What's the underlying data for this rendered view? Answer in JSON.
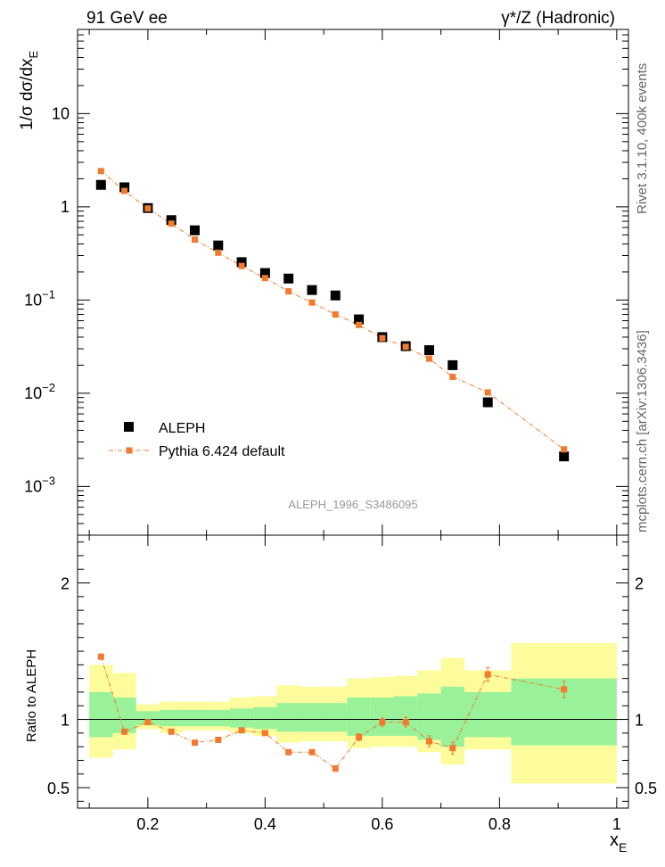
{
  "header": {
    "left": "91 GeV ee",
    "right": "γ*/Z (Hadronic)"
  },
  "side_text": {
    "top": "Rivet 3.1.10,  400k events",
    "bottom": "mcplots.cern.ch [arXiv:1306.3436]"
  },
  "watermark": "ALEPH_1996_S3486095",
  "colors": {
    "data": "#000000",
    "mc": "#f07a2e",
    "band_inner": "#99f299",
    "band_outer": "#fcfc9c"
  },
  "chart_data": [
    {
      "type": "scatter",
      "ylabel": "1/σ dσ/dx",
      "ylabel_sub": "E",
      "yscale": "log",
      "xlim": [
        0.08,
        1.02
      ],
      "ylim": [
        0.0003,
        80
      ],
      "y_ticks": [
        {
          "value": 0.001,
          "mantissa": "10",
          "exp": "−3"
        },
        {
          "value": 0.01,
          "mantissa": "10",
          "exp": "−2"
        },
        {
          "value": 0.1,
          "mantissa": "10",
          "exp": "−1"
        },
        {
          "value": 1,
          "mantissa": "1",
          "exp": ""
        },
        {
          "value": 10,
          "mantissa": "10",
          "exp": ""
        }
      ],
      "legend": {
        "placement": "bottom-left",
        "entries": [
          "ALEPH",
          "Pythia 6.424 default"
        ]
      },
      "series": [
        {
          "name": "ALEPH",
          "x": [
            0.12,
            0.16,
            0.2,
            0.24,
            0.28,
            0.32,
            0.36,
            0.4,
            0.44,
            0.48,
            0.52,
            0.56,
            0.6,
            0.64,
            0.68,
            0.72,
            0.78,
            0.91
          ],
          "y": [
            1.72,
            1.62,
            0.97,
            0.72,
            0.56,
            0.385,
            0.255,
            0.195,
            0.17,
            0.128,
            0.112,
            0.062,
            0.04,
            0.032,
            0.029,
            0.02,
            0.008,
            0.0021
          ]
        },
        {
          "name": "Pythia 6.424 default",
          "x": [
            0.12,
            0.16,
            0.2,
            0.24,
            0.28,
            0.32,
            0.36,
            0.4,
            0.44,
            0.48,
            0.52,
            0.56,
            0.6,
            0.64,
            0.68,
            0.72,
            0.78,
            0.91
          ],
          "y": [
            2.42,
            1.48,
            0.96,
            0.66,
            0.445,
            0.322,
            0.232,
            0.172,
            0.124,
            0.094,
            0.07,
            0.054,
            0.039,
            0.0315,
            0.0235,
            0.015,
            0.0102,
            0.0025
          ]
        }
      ]
    },
    {
      "type": "scatter",
      "ylabel": "Ratio to ALEPH",
      "xlabel": "x",
      "xlabel_sub": "E",
      "xlim": [
        0.08,
        1.02
      ],
      "ylim": [
        0.35,
        2.35
      ],
      "x_ticks": [
        "0.2",
        "0.4",
        "0.6",
        "0.8",
        "1"
      ],
      "y_ticks": [
        "0.5",
        "1",
        "2"
      ],
      "bands": {
        "bins": [
          [
            0.1,
            0.14
          ],
          [
            0.14,
            0.18
          ],
          [
            0.18,
            0.22
          ],
          [
            0.22,
            0.26
          ],
          [
            0.26,
            0.3
          ],
          [
            0.3,
            0.34
          ],
          [
            0.34,
            0.38
          ],
          [
            0.38,
            0.42
          ],
          [
            0.42,
            0.46
          ],
          [
            0.46,
            0.5
          ],
          [
            0.5,
            0.54
          ],
          [
            0.54,
            0.58
          ],
          [
            0.58,
            0.62
          ],
          [
            0.62,
            0.66
          ],
          [
            0.66,
            0.7
          ],
          [
            0.7,
            0.74
          ],
          [
            0.74,
            0.82
          ],
          [
            0.82,
            1.0
          ]
        ],
        "outer_lo": [
          0.72,
          0.78,
          0.93,
          0.9,
          0.92,
          0.92,
          0.9,
          0.88,
          0.83,
          0.84,
          0.84,
          0.79,
          0.8,
          0.8,
          0.76,
          0.67,
          0.78,
          0.53
        ],
        "outer_hi": [
          1.4,
          1.34,
          1.11,
          1.13,
          1.13,
          1.13,
          1.16,
          1.17,
          1.25,
          1.24,
          1.24,
          1.3,
          1.31,
          1.32,
          1.36,
          1.45,
          1.36,
          1.56
        ],
        "inner_lo": [
          0.87,
          0.9,
          0.96,
          0.95,
          0.95,
          0.95,
          0.94,
          0.93,
          0.91,
          0.91,
          0.91,
          0.88,
          0.88,
          0.88,
          0.85,
          0.8,
          0.87,
          0.81
        ],
        "inner_hi": [
          1.2,
          1.16,
          1.06,
          1.07,
          1.07,
          1.07,
          1.08,
          1.09,
          1.12,
          1.12,
          1.12,
          1.16,
          1.16,
          1.17,
          1.19,
          1.24,
          1.2,
          1.3
        ]
      },
      "series": [
        {
          "name": "Pythia 6.424 default",
          "x": [
            0.12,
            0.16,
            0.2,
            0.24,
            0.28,
            0.32,
            0.36,
            0.4,
            0.44,
            0.48,
            0.52,
            0.56,
            0.6,
            0.64,
            0.68,
            0.72,
            0.78,
            0.91
          ],
          "y": [
            1.46,
            0.91,
            0.98,
            0.91,
            0.83,
            0.85,
            0.92,
            0.9,
            0.76,
            0.76,
            0.64,
            0.87,
            0.98,
            0.98,
            0.84,
            0.79,
            1.33,
            1.22
          ],
          "yerr": [
            0.015,
            0.01,
            0.01,
            0.01,
            0.01,
            0.01,
            0.012,
            0.012,
            0.015,
            0.015,
            0.02,
            0.025,
            0.03,
            0.035,
            0.04,
            0.045,
            0.05,
            0.06
          ]
        }
      ]
    }
  ]
}
